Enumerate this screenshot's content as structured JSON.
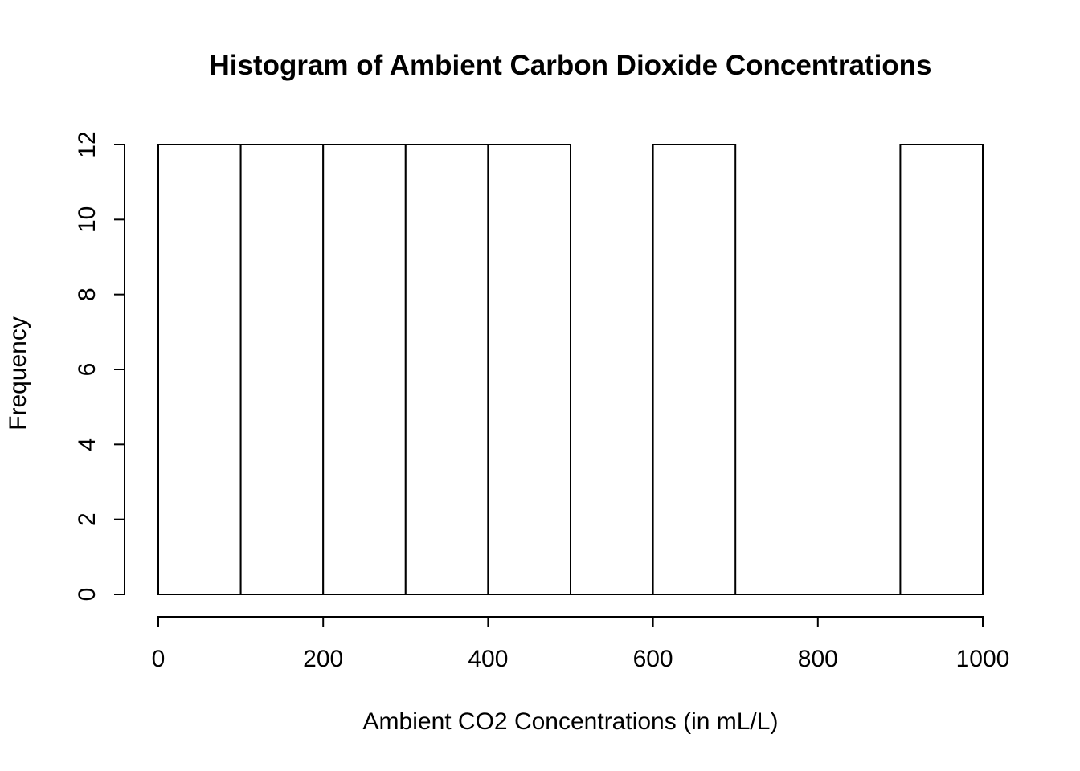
{
  "chart_data": {
    "type": "bar",
    "subtype": "histogram",
    "title": "Histogram of Ambient Carbon Dioxide Concentrations",
    "xlabel": "Ambient CO2 Concentrations (in mL/L)",
    "ylabel": "Frequency",
    "bin_edges": [
      0,
      100,
      200,
      300,
      400,
      500,
      600,
      700,
      800,
      900,
      1000
    ],
    "counts": [
      12,
      12,
      12,
      12,
      12,
      0,
      12,
      0,
      0,
      12
    ],
    "x_ticks": [
      0,
      200,
      400,
      600,
      800,
      1000
    ],
    "y_ticks": [
      0,
      2,
      4,
      6,
      8,
      10,
      12
    ],
    "xlim": [
      0,
      1000
    ],
    "ylim": [
      0,
      12
    ],
    "grid": "off",
    "legend": "none",
    "bar_fill": "#ffffff",
    "bar_stroke": "#000000",
    "background": "#ffffff"
  }
}
